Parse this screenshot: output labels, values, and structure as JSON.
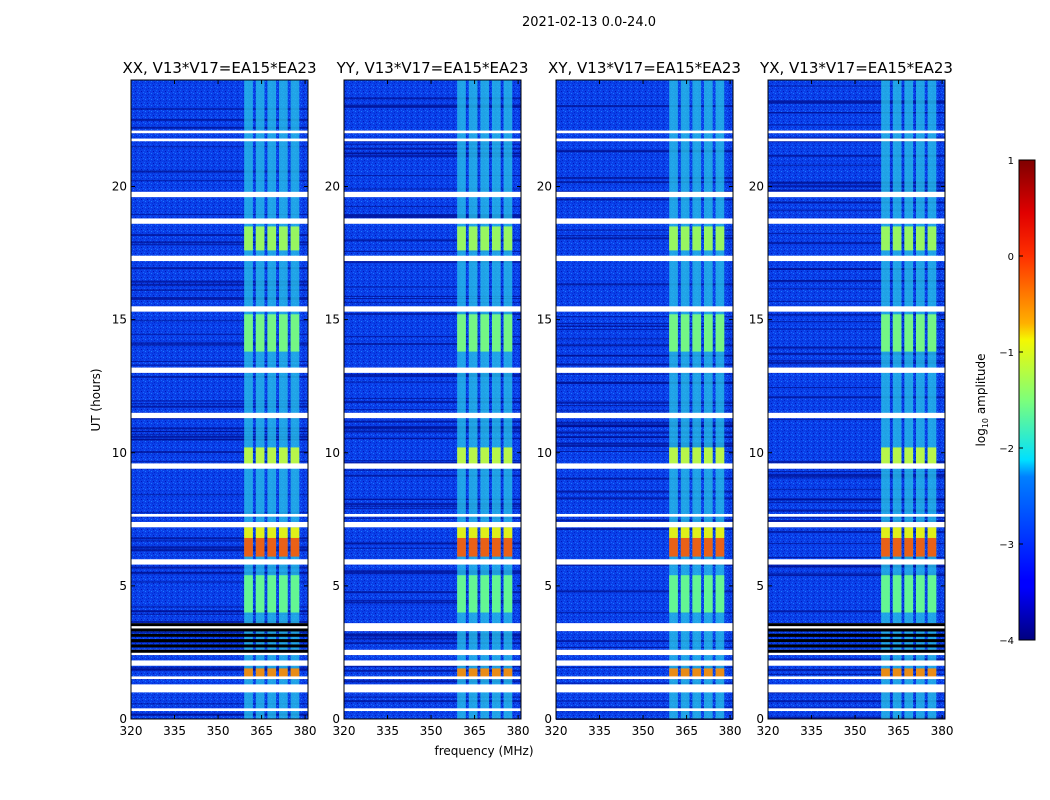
{
  "figure": {
    "suptitle": "2021-02-13 0.0-24.0",
    "xlabel": "frequency (MHz)",
    "ylabel": "UT (hours)"
  },
  "chart_data": {
    "type": "heatmap",
    "title": "2021-02-13 0.0-24.0",
    "xlabel": "frequency (MHz)",
    "ylabel": "UT (hours)",
    "xlim": [
      320,
      381
    ],
    "ylim": [
      0,
      24
    ],
    "xticks": [
      320,
      335,
      350,
      365,
      380
    ],
    "xtick_labels": [
      "320",
      "335",
      "350",
      "365",
      "380"
    ],
    "yticks": [
      0,
      5,
      10,
      15,
      20
    ],
    "ytick_labels": [
      "0",
      "5",
      "10",
      "15",
      "20"
    ],
    "colormap": "jet",
    "panels": [
      {
        "title": "XX, V13*V17=EA15*EA23",
        "polarization": "XX"
      },
      {
        "title": "YY, V13*V17=EA15*EA23",
        "polarization": "YY"
      },
      {
        "title": "XY, V13*V17=EA15*EA23",
        "polarization": "XY"
      },
      {
        "title": "YX, V13*V17=EA15*EA23",
        "polarization": "YX"
      }
    ],
    "rfi_bands_mhz": [
      [
        359,
        362
      ],
      [
        363,
        366
      ],
      [
        367,
        370
      ],
      [
        371,
        374
      ],
      [
        375,
        378
      ]
    ],
    "flagged_gaps_hours": [
      [
        0.3,
        0.4
      ],
      [
        1.0,
        1.3
      ],
      [
        1.5,
        1.6
      ],
      [
        2.0,
        2.2
      ],
      [
        2.4,
        2.6
      ],
      [
        3.3,
        3.6
      ],
      [
        5.8,
        6.0
      ],
      [
        7.2,
        7.4
      ],
      [
        7.6,
        7.7
      ],
      [
        9.4,
        9.6
      ],
      [
        11.3,
        11.5
      ],
      [
        13.0,
        13.2
      ],
      [
        15.3,
        15.5
      ],
      [
        17.2,
        17.4
      ],
      [
        18.6,
        18.8
      ],
      [
        19.6,
        19.8
      ],
      [
        21.7,
        21.8
      ],
      [
        22.0,
        22.1
      ]
    ],
    "colorbar": {
      "label": "log10 amplitude",
      "label_main": "log",
      "label_sub": "10",
      "label_rest": " amplitude",
      "min": -4,
      "max": 1,
      "ticks": [
        1,
        0,
        -1,
        -2,
        -3,
        -4
      ],
      "tick_labels": [
        "1",
        "0",
        "−1",
        "−2",
        "−3",
        "−4"
      ]
    }
  }
}
